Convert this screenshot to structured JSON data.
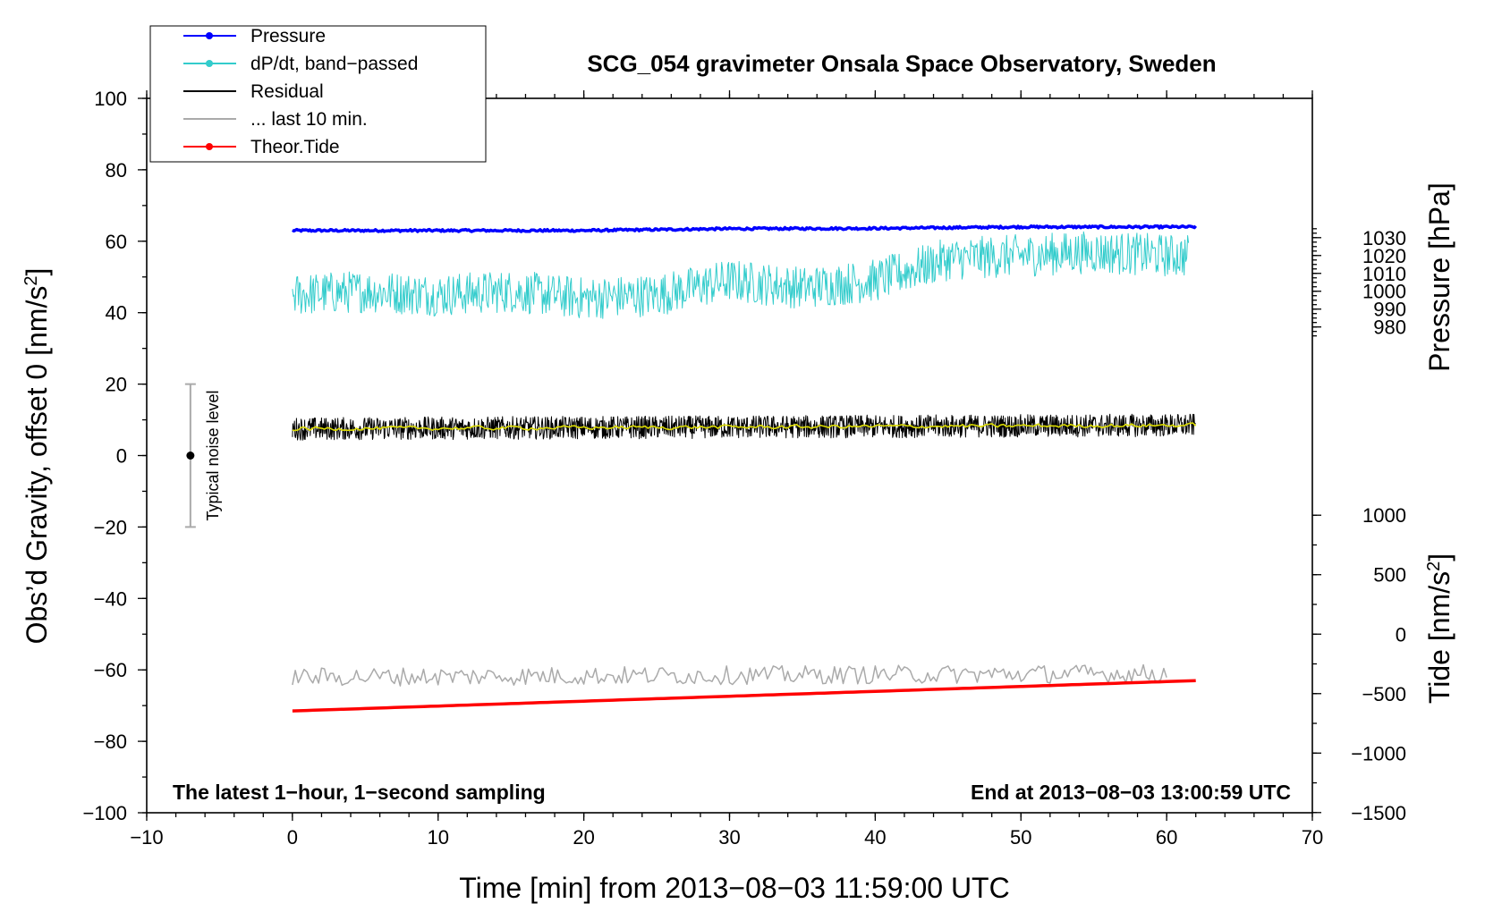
{
  "chart_data": {
    "type": "line",
    "title": "SCG_054 gravimeter Onsala Space Observatory, Sweden",
    "xlabel": "Time [min] from 2013−08−03 11:59:00 UTC",
    "ylabel_left": "Obs’d Gravity, offset 0 [nm/s",
    "ylabel_left_sup": "2",
    "ylabel_left_end": "]",
    "ylabel_pressure": "Pressure [hPa]",
    "ylabel_tide": "Tide [nm/s",
    "ylabel_tide_sup": "2",
    "ylabel_tide_end": "]",
    "xlim": [
      -10,
      70
    ],
    "ylim": [
      -100,
      100
    ],
    "x_ticks": [
      -10,
      0,
      10,
      20,
      30,
      40,
      50,
      60,
      70
    ],
    "x_tick_labels": [
      "−10",
      "0",
      "10",
      "20",
      "30",
      "40",
      "50",
      "60",
      "70"
    ],
    "y_ticks": [
      -100,
      -80,
      -60,
      -40,
      -20,
      0,
      20,
      40,
      60,
      80,
      100
    ],
    "y_tick_labels": [
      "−100",
      "−80",
      "−60",
      "−40",
      "−20",
      "0",
      "20",
      "40",
      "60",
      "80",
      "100"
    ],
    "pressure_axis": {
      "ticks": [
        980,
        990,
        1000,
        1010,
        1020,
        1030
      ],
      "tick_labels": [
        "980",
        "990",
        "1000",
        "1010",
        "1020",
        "1030"
      ],
      "ref_value": 1000,
      "ref_y": 46,
      "scale": 0.5
    },
    "tide_axis": {
      "ticks": [
        -1500,
        -1000,
        -500,
        0,
        500,
        1000
      ],
      "tick_labels": [
        "−1500",
        "−1000",
        "−500",
        "0",
        "500",
        "1000"
      ],
      "ref_value": 0,
      "ref_y": -50,
      "scale": 0.0333
    },
    "legend": [
      {
        "label": "Pressure",
        "color": "#0000ff",
        "marker": true
      },
      {
        "label": "dP/dt, band−passed",
        "color": "#33cccc",
        "marker": true
      },
      {
        "label": "Residual",
        "color": "#000000",
        "marker": false
      },
      {
        "label": "... last 10 min.",
        "color": "#aaaaaa",
        "marker": false
      },
      {
        "label": "Theor.Tide",
        "color": "#ff0000",
        "marker": true
      }
    ],
    "series": [
      {
        "name": "Pressure",
        "color": "#0000ff",
        "x": [
          0,
          10,
          20,
          30,
          40,
          50,
          62
        ],
        "y": [
          63,
          63,
          63,
          63.5,
          63.6,
          64,
          64
        ]
      },
      {
        "name": "dP/dt, band-passed",
        "color": "#33cccc",
        "x": [
          0,
          5,
          10,
          15,
          20,
          25,
          30,
          35,
          40,
          45,
          50,
          55,
          60,
          61.5
        ],
        "y": [
          45,
          46,
          45,
          46,
          44,
          45,
          49,
          47,
          49,
          55,
          56,
          57,
          56,
          56
        ]
      },
      {
        "name": "Residual",
        "color": "#000000",
        "x": [
          0,
          62
        ],
        "y": [
          7.5,
          8.5
        ]
      },
      {
        "name": "Residual smoothed",
        "color": "#dddd00",
        "x": [
          0,
          62
        ],
        "y": [
          7.5,
          8.5
        ]
      },
      {
        "name": "... last 10 min.",
        "color": "#aaaaaa",
        "x": [
          0,
          60
        ],
        "y": [
          -62,
          -61
        ]
      },
      {
        "name": "Theor.Tide",
        "color": "#ff0000",
        "x": [
          0,
          62
        ],
        "y": [
          -71.5,
          -63
        ]
      }
    ],
    "noise_bar": {
      "x": -7,
      "center": 0,
      "low": -20,
      "high": 20,
      "label": "Typical noise level"
    },
    "notes": {
      "left": "The latest 1−hour, 1−second sampling",
      "right": "End at 2013−08−03 13:00:59 UTC"
    }
  }
}
